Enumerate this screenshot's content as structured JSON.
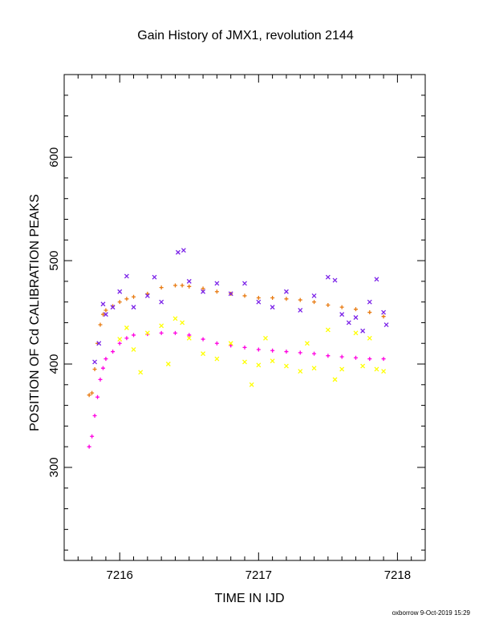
{
  "chart_data": {
    "type": "scatter",
    "title": "Gain History of JMX1, revolution 2144",
    "xlabel": "TIME IN IJD",
    "ylabel": "POSITION OF Cd CALIBRATION PEAKS",
    "xlim": [
      7215.6,
      7218.2
    ],
    "ylim": [
      210,
      680
    ],
    "x_ticks": [
      "7216",
      "7217",
      "7218"
    ],
    "y_ticks": [
      "300",
      "400",
      "500",
      "600"
    ],
    "grid": false,
    "legend": "none",
    "series": [
      {
        "color": "#e87a10",
        "marker": "+",
        "points": [
          [
            7215.78,
            370
          ],
          [
            7215.8,
            372
          ],
          [
            7215.82,
            395
          ],
          [
            7215.84,
            420
          ],
          [
            7215.86,
            438
          ],
          [
            7215.88,
            448
          ],
          [
            7215.9,
            452
          ],
          [
            7215.95,
            456
          ],
          [
            7216.0,
            460
          ],
          [
            7216.05,
            463
          ],
          [
            7216.1,
            465
          ],
          [
            7216.2,
            468
          ],
          [
            7216.3,
            474
          ],
          [
            7216.4,
            476
          ],
          [
            7216.45,
            476
          ],
          [
            7216.5,
            475
          ],
          [
            7216.6,
            473
          ],
          [
            7216.7,
            470
          ],
          [
            7216.8,
            468
          ],
          [
            7216.9,
            466
          ],
          [
            7217.0,
            464
          ],
          [
            7217.1,
            464
          ],
          [
            7217.2,
            463
          ],
          [
            7217.3,
            462
          ],
          [
            7217.4,
            460
          ],
          [
            7217.5,
            457
          ],
          [
            7217.6,
            455
          ],
          [
            7217.7,
            453
          ],
          [
            7217.8,
            450
          ],
          [
            7217.9,
            446
          ]
        ]
      },
      {
        "color": "#ff00e0",
        "marker": "+",
        "points": [
          [
            7215.78,
            320
          ],
          [
            7215.8,
            330
          ],
          [
            7215.82,
            350
          ],
          [
            7215.84,
            368
          ],
          [
            7215.86,
            385
          ],
          [
            7215.88,
            396
          ],
          [
            7215.9,
            405
          ],
          [
            7215.95,
            412
          ],
          [
            7216.0,
            420
          ],
          [
            7216.05,
            425
          ],
          [
            7216.1,
            428
          ],
          [
            7216.2,
            429
          ],
          [
            7216.3,
            430
          ],
          [
            7216.4,
            430
          ],
          [
            7216.5,
            428
          ],
          [
            7216.6,
            424
          ],
          [
            7216.7,
            420
          ],
          [
            7216.8,
            418
          ],
          [
            7216.9,
            416
          ],
          [
            7217.0,
            414
          ],
          [
            7217.1,
            413
          ],
          [
            7217.2,
            412
          ],
          [
            7217.3,
            411
          ],
          [
            7217.4,
            410
          ],
          [
            7217.5,
            408
          ],
          [
            7217.6,
            407
          ],
          [
            7217.7,
            406
          ],
          [
            7217.8,
            405
          ],
          [
            7217.9,
            405
          ]
        ]
      },
      {
        "color": "#7b22e8",
        "marker": "x",
        "points": [
          [
            7215.82,
            402
          ],
          [
            7215.85,
            420
          ],
          [
            7215.88,
            458
          ],
          [
            7215.9,
            448
          ],
          [
            7215.95,
            455
          ],
          [
            7216.0,
            470
          ],
          [
            7216.05,
            485
          ],
          [
            7216.1,
            455
          ],
          [
            7216.2,
            466
          ],
          [
            7216.25,
            484
          ],
          [
            7216.3,
            460
          ],
          [
            7216.42,
            508
          ],
          [
            7216.46,
            510
          ],
          [
            7216.5,
            480
          ],
          [
            7216.6,
            470
          ],
          [
            7216.7,
            478
          ],
          [
            7216.8,
            468
          ],
          [
            7216.9,
            478
          ],
          [
            7217.0,
            460
          ],
          [
            7217.1,
            455
          ],
          [
            7217.2,
            470
          ],
          [
            7217.3,
            452
          ],
          [
            7217.4,
            466
          ],
          [
            7217.5,
            484
          ],
          [
            7217.55,
            481
          ],
          [
            7217.6,
            448
          ],
          [
            7217.65,
            440
          ],
          [
            7217.7,
            445
          ],
          [
            7217.75,
            432
          ],
          [
            7217.8,
            460
          ],
          [
            7217.85,
            482
          ],
          [
            7217.9,
            450
          ],
          [
            7217.92,
            438
          ]
        ]
      },
      {
        "color": "#ffff00",
        "marker": "x",
        "points": [
          [
            7216.0,
            424
          ],
          [
            7216.05,
            435
          ],
          [
            7216.1,
            414
          ],
          [
            7216.15,
            392
          ],
          [
            7216.2,
            430
          ],
          [
            7216.3,
            437
          ],
          [
            7216.35,
            400
          ],
          [
            7216.4,
            444
          ],
          [
            7216.45,
            440
          ],
          [
            7216.5,
            425
          ],
          [
            7216.6,
            410
          ],
          [
            7216.7,
            405
          ],
          [
            7216.8,
            420
          ],
          [
            7216.9,
            402
          ],
          [
            7216.95,
            380
          ],
          [
            7217.0,
            399
          ],
          [
            7217.05,
            425
          ],
          [
            7217.1,
            403
          ],
          [
            7217.2,
            398
          ],
          [
            7217.3,
            393
          ],
          [
            7217.35,
            420
          ],
          [
            7217.4,
            396
          ],
          [
            7217.5,
            433
          ],
          [
            7217.55,
            385
          ],
          [
            7217.6,
            395
          ],
          [
            7217.7,
            430
          ],
          [
            7217.75,
            398
          ],
          [
            7217.8,
            425
          ],
          [
            7217.85,
            395
          ],
          [
            7217.9,
            393
          ]
        ]
      }
    ]
  },
  "footer": {
    "credit": "oxborrow 9-Oct-2019 15:29"
  }
}
